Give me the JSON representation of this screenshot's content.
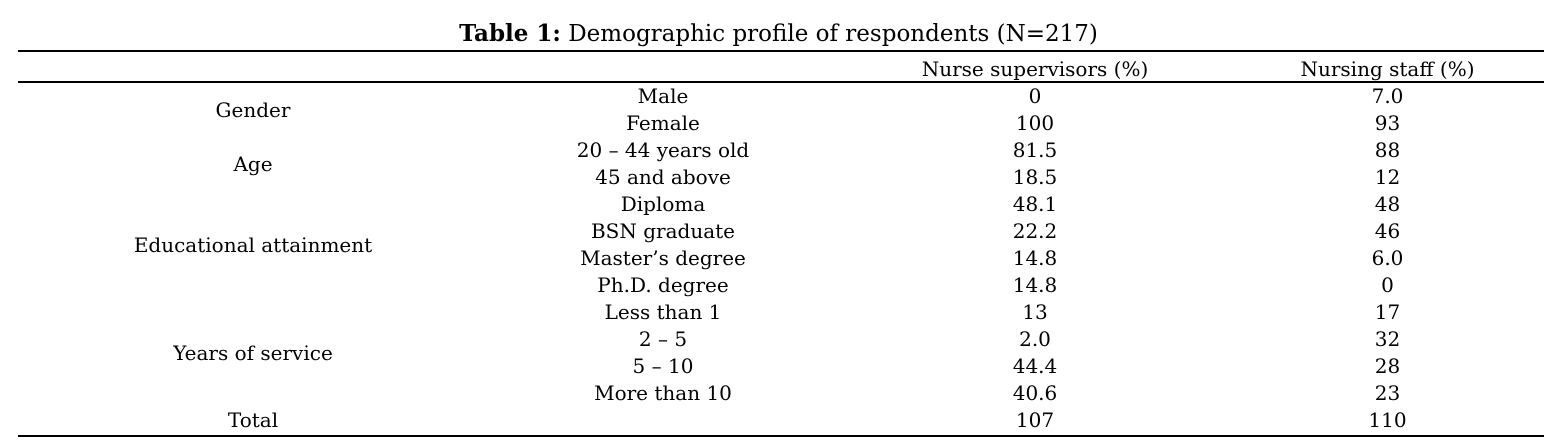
{
  "table": {
    "caption_label": "Table 1:",
    "caption_text": " Demographic profile of respondents (N=217)",
    "headers": [
      "",
      "",
      "Nurse supervisors (%)",
      "Nursing staff (%)"
    ],
    "groups": [
      {
        "label": "Gender",
        "rows": [
          {
            "category": "Male",
            "supervisors": "0",
            "staff": "7.0"
          },
          {
            "category": "Female",
            "supervisors": "100",
            "staff": "93"
          }
        ]
      },
      {
        "label": "Age",
        "rows": [
          {
            "category": "20 – 44 years old",
            "supervisors": "81.5",
            "staff": "88"
          },
          {
            "category": "45 and above",
            "supervisors": "18.5",
            "staff": "12"
          }
        ]
      },
      {
        "label": "Educational attainment",
        "rows": [
          {
            "category": "Diploma",
            "supervisors": "48.1",
            "staff": "48"
          },
          {
            "category": "BSN graduate",
            "supervisors": "22.2",
            "staff": "46"
          },
          {
            "category": "Master’s degree",
            "supervisors": "14.8",
            "staff": "6.0"
          },
          {
            "category": "Ph.D. degree",
            "supervisors": "14.8",
            "staff": "0"
          }
        ]
      },
      {
        "label": "Years of service",
        "rows": [
          {
            "category": "Less than 1",
            "supervisors": "13",
            "staff": "17"
          },
          {
            "category": "2 – 5",
            "supervisors": "2.0",
            "staff": "32"
          },
          {
            "category": "5 – 10",
            "supervisors": "44.4",
            "staff": "28"
          },
          {
            "category": "More than 10",
            "supervisors": "40.6",
            "staff": "23"
          }
        ]
      }
    ],
    "total": {
      "label": "Total",
      "supervisors": "107",
      "staff": "110"
    }
  }
}
